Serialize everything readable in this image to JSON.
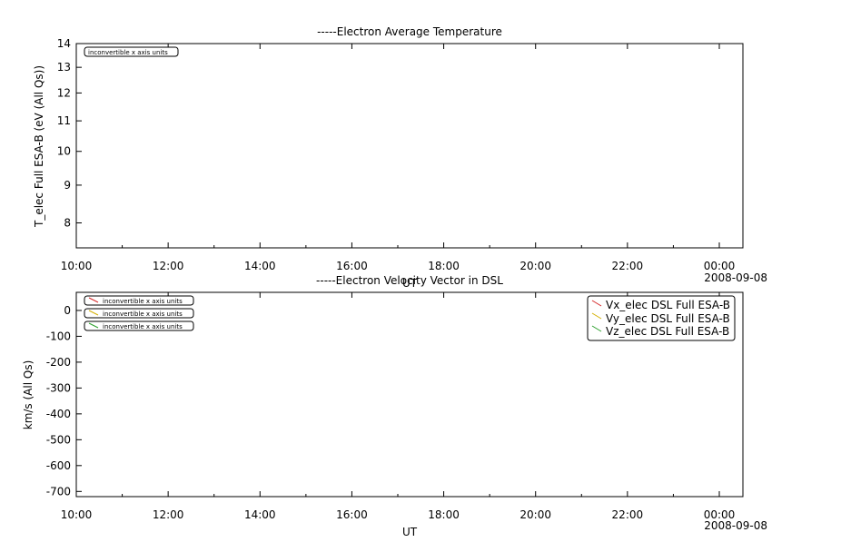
{
  "chart_data": [
    {
      "type": "line",
      "title": "-----Electron Average Temperature",
      "xlabel": "UT",
      "ylabel": "T_elec Full ESA-B (eV (All Qs))",
      "y_scale": "log",
      "ylim": [
        7.4,
        14
      ],
      "y_ticks": [
        8,
        9,
        10,
        11,
        12,
        13,
        14
      ],
      "x_ticks": [
        "10:00",
        "12:00",
        "14:00",
        "16:00",
        "18:00",
        "20:00",
        "22:00",
        "00:00"
      ],
      "x_date_label": "2008-09-08",
      "series": [],
      "annotations": [
        "inconvertible x axis units"
      ],
      "grid": false
    },
    {
      "type": "line",
      "title": "-----Electron Velocity Vector in DSL",
      "xlabel": "UT",
      "ylabel": "km/s (All Qs)",
      "y_scale": "linear",
      "ylim": [
        -720,
        70
      ],
      "y_ticks": [
        0,
        -100,
        -200,
        -300,
        -400,
        -500,
        -600,
        -700
      ],
      "x_ticks": [
        "10:00",
        "12:00",
        "14:00",
        "16:00",
        "18:00",
        "20:00",
        "22:00",
        "00:00"
      ],
      "x_date_label": "2008-09-08",
      "series": [
        {
          "name": "Vx_elec DSL Full ESA-B",
          "color": "#d62728",
          "values": []
        },
        {
          "name": "Vy_elec DSL Full ESA-B",
          "color": "#d4b000",
          "values": []
        },
        {
          "name": "Vz_elec DSL Full ESA-B",
          "color": "#2ca02c",
          "values": []
        }
      ],
      "annotations": [
        "inconvertible x axis units",
        "inconvertible x axis units",
        "inconvertible x axis units"
      ],
      "legend": "top-right",
      "grid": false
    }
  ]
}
